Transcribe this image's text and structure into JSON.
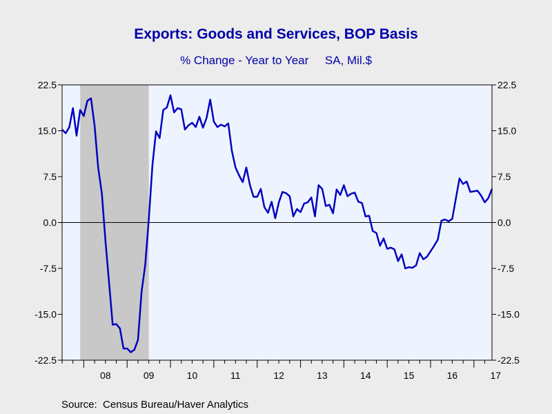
{
  "chart_data": {
    "type": "line",
    "title": "Exports: Goods and Services, BOP Basis",
    "subtitle": "% Change - Year to Year     SA, Mil.$",
    "source": "Source:  Census Bureau/Haver Analytics",
    "xlabel": "",
    "ylabel": "",
    "ylim": [
      -22.5,
      22.5
    ],
    "y_ticks": [
      "22.5",
      "15.0",
      "7.5",
      "0.0",
      "-7.5",
      "-15.0",
      "-22.5"
    ],
    "y_tick_values": [
      22.5,
      15.0,
      7.5,
      0.0,
      -7.5,
      -15.0,
      -22.5
    ],
    "x_tick_labels": [
      "08",
      "09",
      "10",
      "11",
      "12",
      "13",
      "14",
      "15",
      "16",
      "17"
    ],
    "x_range": [
      "2007-07",
      "2017-06"
    ],
    "grid": false,
    "zero_line": true,
    "recession_shading": {
      "start": "2007-12",
      "end": "2009-06"
    },
    "line_color": "#0000c0",
    "series": [
      {
        "start": "2007-07",
        "values": [
          15.2,
          14.6,
          15.6,
          18.7,
          14.2,
          18.4,
          17.4,
          19.9,
          20.3,
          15.8,
          8.9,
          4.8,
          -3.0,
          -9.8,
          -16.7,
          -16.6,
          -17.3,
          -20.6,
          -20.6,
          -21.2,
          -20.8,
          -19.2,
          -11.3,
          -7.0,
          0.5,
          9.3,
          14.9,
          13.8,
          18.4,
          18.8,
          20.8,
          18.0,
          18.7,
          18.5,
          15.2,
          15.9,
          16.3,
          15.6,
          17.3,
          15.5,
          17.1,
          20.1,
          16.5,
          15.6,
          16.0,
          15.7,
          16.2,
          11.7,
          9.0,
          7.7,
          6.6,
          9.0,
          6.1,
          4.2,
          4.2,
          5.5,
          2.5,
          1.6,
          3.4,
          0.7,
          3.3,
          5.0,
          4.8,
          4.3,
          1.0,
          2.2,
          1.7,
          3.1,
          3.3,
          4.1,
          1.0,
          6.1,
          5.5,
          2.7,
          2.9,
          1.5,
          5.4,
          4.5,
          6.1,
          4.3,
          4.7,
          4.9,
          3.4,
          3.2,
          1.0,
          1.1,
          -1.4,
          -1.7,
          -3.8,
          -2.6,
          -4.3,
          -4.1,
          -4.4,
          -6.3,
          -5.2,
          -7.5,
          -7.3,
          -7.4,
          -7.0,
          -5.0,
          -6.0,
          -5.6,
          -4.7,
          -3.8,
          -2.8,
          0.3,
          0.5,
          0.2,
          0.6,
          3.9,
          7.2,
          6.3,
          6.7,
          5.0,
          5.1,
          5.2,
          4.4,
          3.3,
          4.0,
          5.5
        ]
      }
    ]
  }
}
